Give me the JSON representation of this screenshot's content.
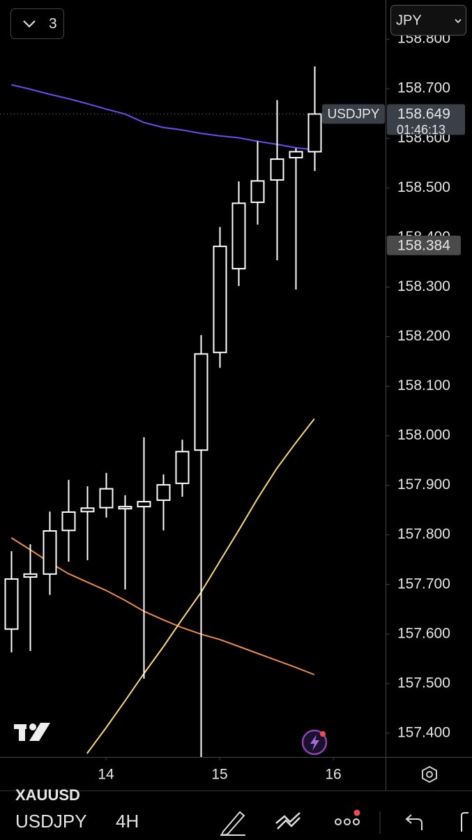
{
  "chart_data": {
    "type": "candlestick",
    "x": [
      13.167,
      13.333,
      13.5,
      13.667,
      13.833,
      14,
      14.167,
      14.333,
      14.5,
      14.667,
      14.833,
      15,
      15.167,
      15.333,
      15.5,
      15.667,
      15.833
    ],
    "open": [
      157.61,
      157.715,
      157.721,
      157.809,
      157.847,
      157.855,
      157.855,
      157.857,
      157.87,
      157.904,
      157.971,
      158.168,
      158.337,
      158.471,
      158.516,
      158.561,
      158.573
    ],
    "high": [
      157.767,
      157.781,
      157.847,
      157.911,
      157.898,
      157.925,
      157.88,
      157.997,
      157.922,
      157.992,
      158.203,
      158.421,
      158.513,
      158.594,
      158.677,
      158.58,
      158.745
    ],
    "low": [
      157.563,
      157.566,
      157.679,
      157.746,
      157.749,
      157.835,
      157.69,
      157.51,
      157.809,
      157.877,
      157.352,
      158.137,
      158.302,
      158.426,
      158.354,
      158.295,
      158.534
    ],
    "close": [
      157.711,
      157.721,
      157.808,
      157.846,
      157.854,
      157.893,
      157.857,
      157.867,
      157.901,
      157.968,
      158.165,
      158.382,
      158.469,
      158.514,
      158.558,
      158.573,
      158.649
    ],
    "candle_color": "#ffffff",
    "series": [
      {
        "color": "#6b4cf2",
        "values": [
          158.708,
          158.699,
          158.689,
          158.68,
          158.67,
          158.659,
          158.649,
          158.632,
          158.622,
          158.617,
          158.61,
          158.605,
          158.601,
          158.594,
          158.588,
          158.581,
          158.577
        ]
      },
      {
        "color": "#e98c45",
        "values": [
          157.794,
          157.77,
          157.745,
          157.722,
          157.705,
          157.688,
          157.668,
          157.646,
          157.629,
          157.613,
          157.6,
          157.589,
          157.575,
          157.561,
          157.547,
          157.533,
          157.518
        ]
      },
      {
        "color": "#f8d87a",
        "values": [
          null,
          null,
          null,
          null,
          157.359,
          157.411,
          157.465,
          157.52,
          157.573,
          157.629,
          157.683,
          157.746,
          157.809,
          157.873,
          157.933,
          157.985,
          158.034
        ]
      }
    ],
    "xlim": [
      13.067,
      16.46
    ],
    "xticks": [
      14,
      15,
      16
    ],
    "ylim": [
      157.352,
      158.879
    ],
    "yticks": [
      {
        "value": 157.4,
        "label": "157.400"
      },
      {
        "value": 157.5,
        "label": "157.500"
      },
      {
        "value": 157.6,
        "label": "157.600"
      },
      {
        "value": 157.7,
        "label": "157.700"
      },
      {
        "value": 157.8,
        "label": "157.800"
      },
      {
        "value": 157.9,
        "label": "157.900"
      },
      {
        "value": 158.0,
        "label": "158.000"
      },
      {
        "value": 158.1,
        "label": "158.100"
      },
      {
        "value": 158.2,
        "label": "158.200"
      },
      {
        "value": 158.3,
        "label": "158.300"
      },
      {
        "value": 158.4,
        "label": "158.400"
      },
      {
        "value": 158.5,
        "label": "158.500"
      },
      {
        "value": 158.6,
        "label": "158.600"
      },
      {
        "value": 158.7,
        "label": "158.700"
      },
      {
        "value": 158.8,
        "label": "158.800"
      }
    ],
    "symbol": "USDJPY",
    "last_price": 158.649,
    "countdown": "01:46:13",
    "marker_price": 158.384
  },
  "ui": {
    "layer_count": "3",
    "currency": "JPY",
    "symbol": "USDJPY",
    "interval": "4H",
    "ghost_symbol": "XAUUSD"
  }
}
